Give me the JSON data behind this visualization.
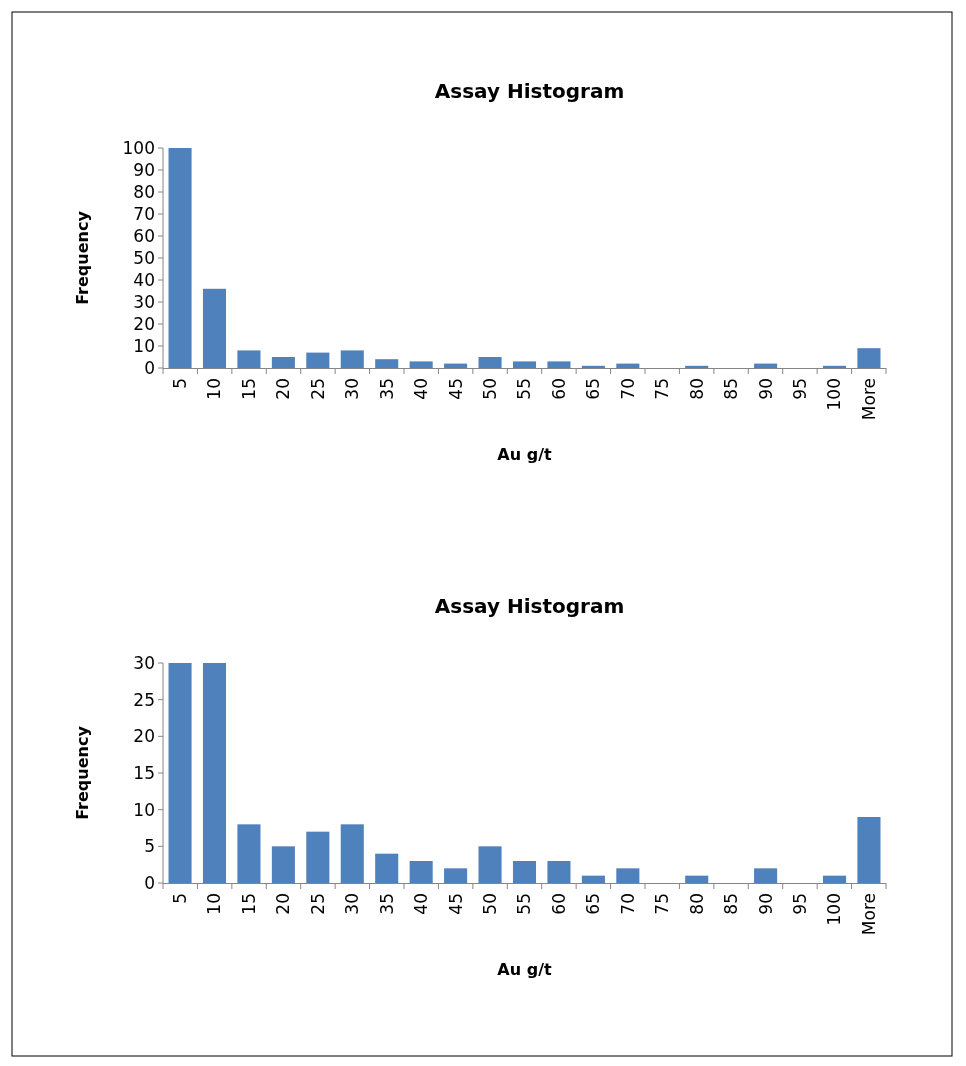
{
  "chart_data": [
    {
      "type": "bar",
      "title": "Assay Histogram",
      "xlabel": "Au g/t",
      "ylabel": "Frequency",
      "categories": [
        "5",
        "10",
        "15",
        "20",
        "25",
        "30",
        "35",
        "40",
        "45",
        "50",
        "55",
        "60",
        "65",
        "70",
        "75",
        "80",
        "85",
        "90",
        "95",
        "100",
        "More"
      ],
      "values": [
        100,
        36,
        8,
        5,
        7,
        8,
        4,
        3,
        2,
        5,
        3,
        3,
        1,
        2,
        0,
        1,
        0,
        2,
        0,
        1,
        9
      ],
      "color": "#4f81bd",
      "ylim": [
        0,
        100
      ],
      "yticks": [
        0,
        10,
        20,
        30,
        40,
        50,
        60,
        70,
        80,
        90,
        100
      ],
      "grid": false
    },
    {
      "type": "bar",
      "title": "Assay Histogram",
      "xlabel": "Au g/t",
      "ylabel": "Frequency",
      "categories": [
        "5",
        "10",
        "15",
        "20",
        "25",
        "30",
        "35",
        "40",
        "45",
        "50",
        "55",
        "60",
        "65",
        "70",
        "75",
        "80",
        "85",
        "90",
        "95",
        "100",
        "More"
      ],
      "values": [
        30,
        30,
        8,
        5,
        7,
        8,
        4,
        3,
        2,
        5,
        3,
        3,
        1,
        2,
        0,
        1,
        0,
        2,
        0,
        1,
        9
      ],
      "color": "#4f81bd",
      "ylim": [
        0,
        30
      ],
      "yticks": [
        0,
        5,
        10,
        15,
        20,
        25,
        30
      ],
      "grid": false
    }
  ]
}
